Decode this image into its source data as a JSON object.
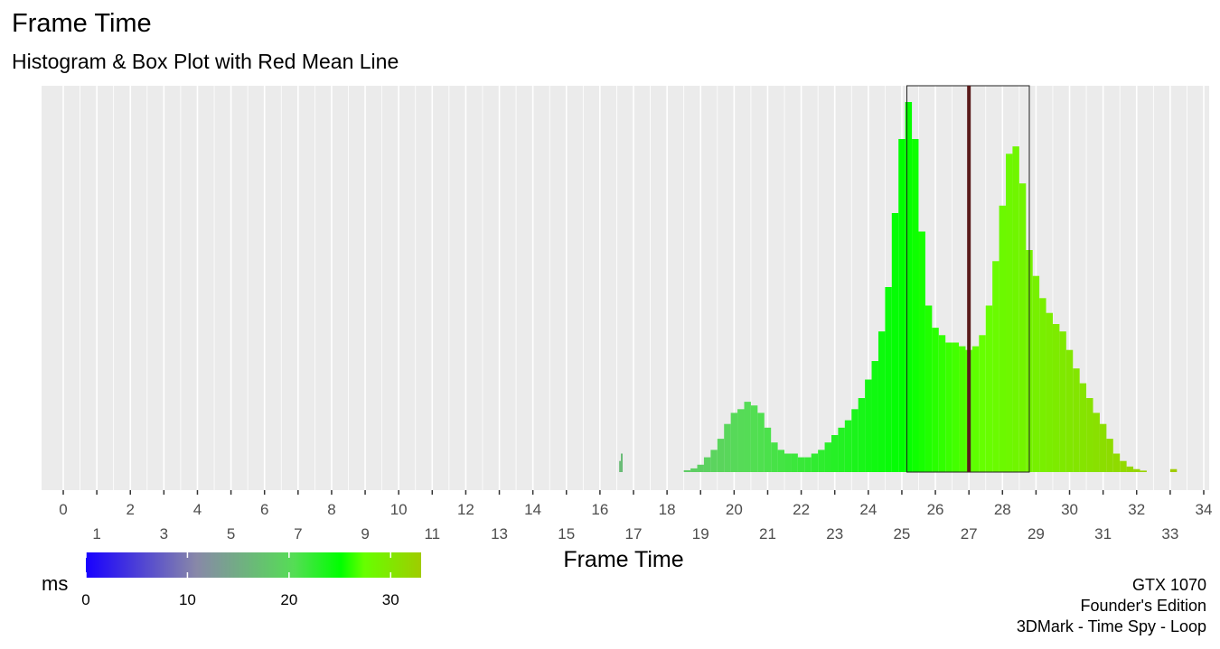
{
  "title": "Frame Time",
  "subtitle": "Histogram & Box Plot with Red Mean Line",
  "caption": [
    "GTX 1070",
    "Founder's Edition",
    "3DMark - Time Spy - Loop"
  ],
  "chart_data": {
    "type": "histogram",
    "title": "Frame Time",
    "subtitle": "Histogram & Box Plot with Red Mean Line",
    "xlabel": "Frame Time",
    "ylabel": "",
    "xlim": [
      0,
      34
    ],
    "x_ticks": [
      0,
      1,
      2,
      3,
      4,
      5,
      6,
      7,
      8,
      9,
      10,
      11,
      12,
      13,
      14,
      15,
      16,
      17,
      18,
      19,
      20,
      21,
      22,
      23,
      24,
      25,
      26,
      27,
      28,
      29,
      30,
      31,
      32,
      33,
      34
    ],
    "y_axis_visible": false,
    "grid": true,
    "bins": [
      [
        16.6,
        0.03
      ],
      [
        16.65,
        0.05
      ],
      [
        18.6,
        0.005
      ],
      [
        18.8,
        0.01
      ],
      [
        19.0,
        0.02
      ],
      [
        19.2,
        0.04
      ],
      [
        19.4,
        0.06
      ],
      [
        19.6,
        0.09
      ],
      [
        19.8,
        0.13
      ],
      [
        20.0,
        0.16
      ],
      [
        20.2,
        0.17
      ],
      [
        20.4,
        0.19
      ],
      [
        20.6,
        0.18
      ],
      [
        20.8,
        0.16
      ],
      [
        21.0,
        0.12
      ],
      [
        21.2,
        0.08
      ],
      [
        21.4,
        0.06
      ],
      [
        21.6,
        0.05
      ],
      [
        21.8,
        0.05
      ],
      [
        22.0,
        0.04
      ],
      [
        22.2,
        0.04
      ],
      [
        22.4,
        0.05
      ],
      [
        22.6,
        0.06
      ],
      [
        22.8,
        0.08
      ],
      [
        23.0,
        0.1
      ],
      [
        23.2,
        0.12
      ],
      [
        23.4,
        0.14
      ],
      [
        23.6,
        0.17
      ],
      [
        23.8,
        0.2
      ],
      [
        24.0,
        0.25
      ],
      [
        24.2,
        0.3
      ],
      [
        24.4,
        0.38
      ],
      [
        24.6,
        0.5
      ],
      [
        24.8,
        0.7
      ],
      [
        25.0,
        0.9
      ],
      [
        25.2,
        1.0
      ],
      [
        25.4,
        0.9
      ],
      [
        25.6,
        0.65
      ],
      [
        25.8,
        0.45
      ],
      [
        26.0,
        0.39
      ],
      [
        26.2,
        0.37
      ],
      [
        26.4,
        0.35
      ],
      [
        26.6,
        0.35
      ],
      [
        26.8,
        0.34
      ],
      [
        27.0,
        0.33
      ],
      [
        27.2,
        0.34
      ],
      [
        27.4,
        0.37
      ],
      [
        27.6,
        0.45
      ],
      [
        27.8,
        0.57
      ],
      [
        28.0,
        0.72
      ],
      [
        28.2,
        0.86
      ],
      [
        28.4,
        0.88
      ],
      [
        28.6,
        0.78
      ],
      [
        28.8,
        0.6
      ],
      [
        29.0,
        0.53
      ],
      [
        29.2,
        0.47
      ],
      [
        29.4,
        0.43
      ],
      [
        29.6,
        0.4
      ],
      [
        29.8,
        0.38
      ],
      [
        30.0,
        0.33
      ],
      [
        30.2,
        0.28
      ],
      [
        30.4,
        0.24
      ],
      [
        30.6,
        0.2
      ],
      [
        30.8,
        0.16
      ],
      [
        31.0,
        0.13
      ],
      [
        31.2,
        0.09
      ],
      [
        31.4,
        0.05
      ],
      [
        31.6,
        0.03
      ],
      [
        31.8,
        0.015
      ],
      [
        32.0,
        0.008
      ],
      [
        32.2,
        0.004
      ],
      [
        33.1,
        0.008
      ]
    ],
    "boxplot": {
      "q1": 25.15,
      "median": 27.0,
      "q3": 28.8
    },
    "mean_line": 27.0,
    "colorbar": {
      "title": "ms",
      "ticks": [
        0,
        10,
        20,
        30
      ],
      "range": [
        0,
        33
      ],
      "colors": [
        "#1800ff",
        "#8888a8",
        "#55dd55",
        "#00ff00",
        "#66ff00",
        "#a0cc00"
      ],
      "placement": "bottom-left"
    }
  }
}
